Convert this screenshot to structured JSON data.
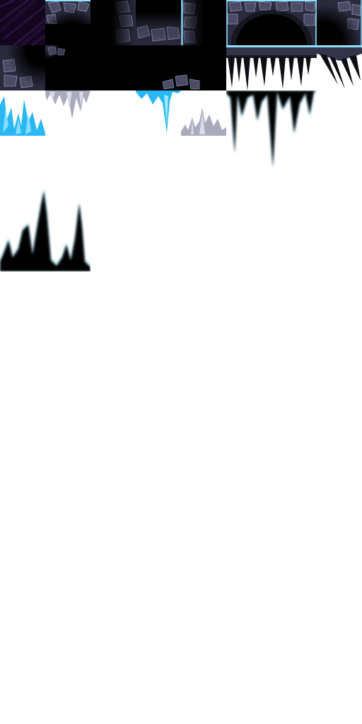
{
  "sheet": {
    "background": "#ffffff"
  },
  "palette": {
    "void": "#000000",
    "purple_void": "#14061f",
    "purple_streak": "#3a1a55",
    "rock_dark": "#1b1b28",
    "rock_mid": "#33334a",
    "rock_light": "#5a5c78",
    "rock_edge": "#8f93b0",
    "glow_cyan": "#8fe3ff",
    "ice_blue": "#2ab8f5",
    "ice_light": "#9ee9ff",
    "stalactite_grey": "#a9abbd",
    "stalactite_light": "#d9dbe6",
    "shadow_black": "#050505"
  },
  "sprites": [
    {
      "name": "purple-void-tile",
      "kind": "background"
    },
    {
      "name": "rock-corner-top-left",
      "kind": "terrain"
    },
    {
      "name": "rock-wall-right",
      "kind": "terrain"
    },
    {
      "name": "rock-inner-corner-bottom",
      "kind": "terrain"
    },
    {
      "name": "rock-wall-left",
      "kind": "terrain"
    },
    {
      "name": "rock-arch-cave",
      "kind": "terrain"
    },
    {
      "name": "rock-corner-top-right",
      "kind": "terrain"
    },
    {
      "name": "rock-corner-left-bottom",
      "kind": "terrain"
    },
    {
      "name": "rock-mound-top",
      "kind": "terrain"
    },
    {
      "name": "black-fill-tile",
      "kind": "terrain"
    },
    {
      "name": "icicle-ledge-wide",
      "kind": "decoration"
    },
    {
      "name": "icicle-ledge-pair",
      "kind": "decoration"
    },
    {
      "name": "ice-crystal-spikes",
      "kind": "decoration"
    },
    {
      "name": "grey-stalactites",
      "kind": "decoration"
    },
    {
      "name": "ice-stalactite-single",
      "kind": "decoration"
    },
    {
      "name": "grey-stalagmites",
      "kind": "decoration"
    },
    {
      "name": "shadow-stalactites",
      "kind": "decoration"
    },
    {
      "name": "shadow-stalagmites",
      "kind": "decoration"
    }
  ]
}
